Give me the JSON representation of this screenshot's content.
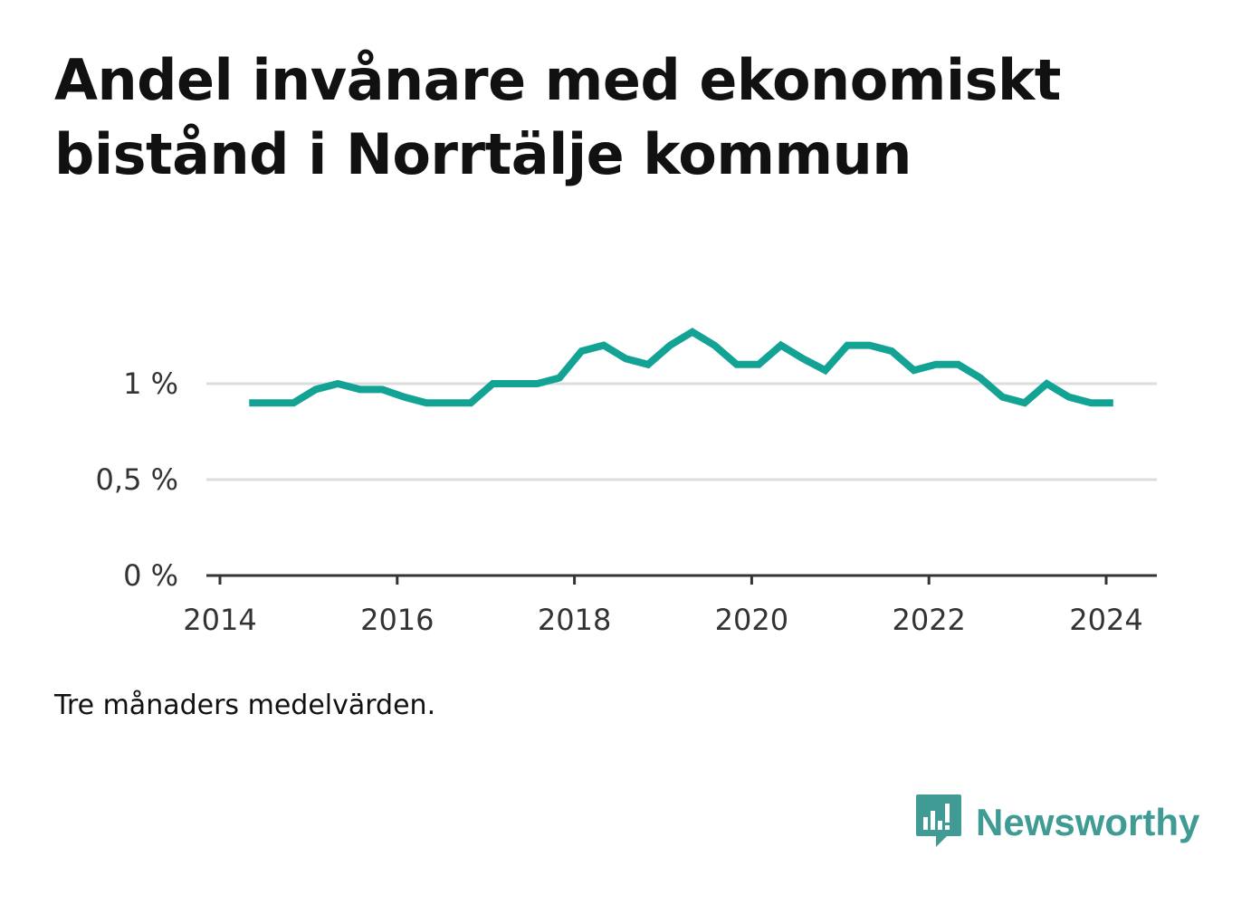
{
  "chart_data": {
    "type": "line",
    "title": "Andel invånare med ekonomiskt bistånd i Norrtälje kommun",
    "note": "Tre månaders medelvärden.",
    "xlabel": "",
    "ylabel": "",
    "x_ticks": [
      "2014",
      "2016",
      "2018",
      "2020",
      "2022",
      "2024"
    ],
    "x_tick_values": [
      2014,
      2016,
      2018,
      2020,
      2022,
      2024
    ],
    "y_ticks": [
      "0 %",
      "0,5 %",
      "1 %"
    ],
    "y_tick_values": [
      0,
      0.5,
      1.0
    ],
    "xlim": [
      2014,
      2024.6
    ],
    "ylim": [
      0,
      1.3
    ],
    "grid": true,
    "line_color": "#12a394",
    "series": [
      {
        "x": [
          2014.33,
          2014.58,
          2014.83,
          2015.08,
          2015.33,
          2015.58,
          2015.83,
          2016.08,
          2016.33,
          2016.58,
          2016.83,
          2017.08,
          2017.33,
          2017.58,
          2017.83,
          2018.08,
          2018.33,
          2018.58,
          2018.83,
          2019.08,
          2019.33,
          2019.58,
          2019.83,
          2020.08,
          2020.33,
          2020.58,
          2020.83,
          2021.08,
          2021.33,
          2021.58,
          2021.83,
          2022.08,
          2022.33,
          2022.58,
          2022.83,
          2023.08,
          2023.33,
          2023.58,
          2023.83,
          2024.08
        ],
        "values": [
          0.9,
          0.9,
          0.9,
          0.97,
          1.0,
          0.97,
          0.97,
          0.93,
          0.9,
          0.9,
          0.9,
          1.0,
          1.0,
          1.0,
          1.03,
          1.17,
          1.2,
          1.13,
          1.1,
          1.2,
          1.27,
          1.2,
          1.1,
          1.1,
          1.2,
          1.13,
          1.07,
          1.2,
          1.2,
          1.17,
          1.07,
          1.1,
          1.1,
          1.03,
          0.93,
          0.9,
          1.0,
          0.93,
          0.9,
          0.9
        ]
      }
    ]
  },
  "brand": {
    "name": "Newsworthy",
    "icon": "newsworthy-logo-icon",
    "color": "#3f9b93"
  }
}
